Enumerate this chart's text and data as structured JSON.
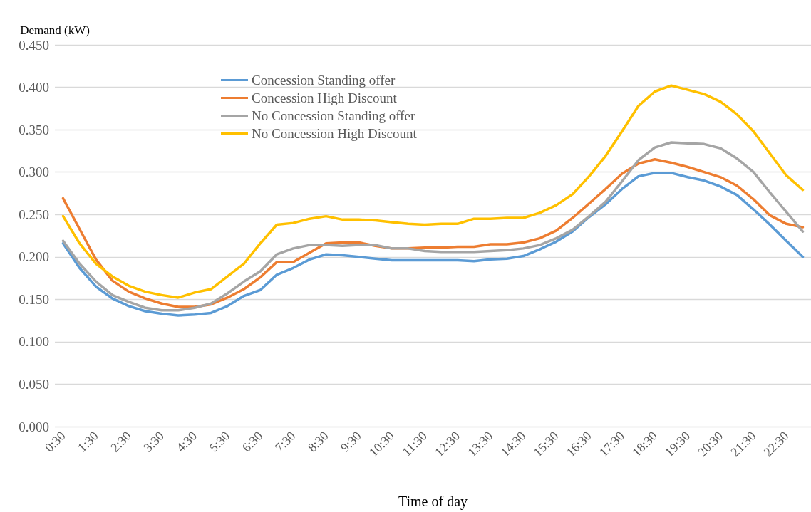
{
  "chart_data": {
    "type": "line",
    "xlabel": "Time of day",
    "ylabel": "Demand (kW)",
    "categories": [
      "0:30",
      null,
      "1:30",
      null,
      "2:30",
      null,
      "3:30",
      null,
      "4:30",
      null,
      "5:30",
      null,
      "6:30",
      null,
      "7:30",
      null,
      "8:30",
      null,
      "9:30",
      null,
      "10:30",
      null,
      "11:30",
      null,
      "12:30",
      null,
      "13:30",
      null,
      "14:30",
      null,
      "15:30",
      null,
      "16:30",
      null,
      "17:30",
      null,
      "18:30",
      null,
      "19:30",
      null,
      "20:30",
      null,
      "21:30",
      null,
      "22:30",
      null
    ],
    "series": [
      {
        "name": "Concession Standing offer",
        "color": "#5b9bd5",
        "values": [
          0.216,
          0.187,
          0.165,
          0.151,
          0.142,
          0.136,
          0.133,
          0.131,
          0.132,
          0.134,
          0.142,
          0.154,
          0.161,
          0.179,
          0.187,
          0.197,
          0.203,
          0.202,
          0.2,
          0.198,
          0.196,
          0.196,
          0.196,
          0.196,
          0.196,
          0.195,
          0.197,
          0.198,
          0.201,
          0.209,
          0.218,
          0.23,
          0.247,
          0.262,
          0.28,
          0.295,
          0.299,
          0.299,
          0.294,
          0.29,
          0.283,
          0.273,
          0.256,
          0.238,
          0.219,
          0.2
        ]
      },
      {
        "name": "Concession High Discount",
        "color": "#ed7d31",
        "values": [
          0.269,
          0.233,
          0.197,
          0.172,
          0.159,
          0.151,
          0.145,
          0.141,
          0.141,
          0.144,
          0.152,
          0.162,
          0.176,
          0.194,
          0.194,
          0.205,
          0.216,
          0.217,
          0.217,
          0.213,
          0.21,
          0.21,
          0.211,
          0.211,
          0.212,
          0.212,
          0.215,
          0.215,
          0.217,
          0.222,
          0.231,
          0.246,
          0.263,
          0.28,
          0.298,
          0.31,
          0.315,
          0.311,
          0.306,
          0.3,
          0.294,
          0.284,
          0.268,
          0.249,
          0.239,
          0.235
        ]
      },
      {
        "name": "No Concession Standing offer",
        "color": "#a5a5a5",
        "values": [
          0.219,
          0.192,
          0.171,
          0.155,
          0.147,
          0.14,
          0.137,
          0.137,
          0.14,
          0.145,
          0.157,
          0.171,
          0.183,
          0.203,
          0.21,
          0.214,
          0.214,
          0.213,
          0.214,
          0.214,
          0.21,
          0.21,
          0.207,
          0.206,
          0.206,
          0.206,
          0.207,
          0.208,
          0.21,
          0.214,
          0.222,
          0.232,
          0.248,
          0.265,
          0.289,
          0.314,
          0.329,
          0.335,
          0.334,
          0.333,
          0.328,
          0.316,
          0.3,
          0.276,
          0.253,
          0.23
        ]
      },
      {
        "name": "No Concession High Discount",
        "color": "#ffc000",
        "values": [
          0.248,
          0.216,
          0.192,
          0.177,
          0.166,
          0.159,
          0.155,
          0.152,
          0.158,
          0.162,
          0.177,
          0.192,
          0.216,
          0.238,
          0.24,
          0.245,
          0.248,
          0.244,
          0.244,
          0.243,
          0.241,
          0.239,
          0.238,
          0.239,
          0.239,
          0.245,
          0.245,
          0.246,
          0.246,
          0.252,
          0.261,
          0.274,
          0.295,
          0.319,
          0.348,
          0.378,
          0.395,
          0.402,
          0.397,
          0.392,
          0.383,
          0.368,
          0.348,
          0.322,
          0.296,
          0.279
        ]
      }
    ],
    "ylim": [
      0,
      0.45
    ],
    "yticks": [
      {
        "value": 0,
        "label": "0.000"
      },
      {
        "value": 0.05,
        "label": "0.050"
      },
      {
        "value": 0.1,
        "label": "0.100"
      },
      {
        "value": 0.15,
        "label": "0.150"
      },
      {
        "value": 0.2,
        "label": "0.200"
      },
      {
        "value": 0.25,
        "label": "0.250"
      },
      {
        "value": 0.3,
        "label": "0.300"
      },
      {
        "value": 0.35,
        "label": "0.350"
      },
      {
        "value": 0.4,
        "label": "0.400"
      },
      {
        "value": 0.45,
        "label": "0.450"
      }
    ],
    "grid": "y",
    "legend": "top left",
    "marker": "none",
    "line_style": "solid"
  }
}
